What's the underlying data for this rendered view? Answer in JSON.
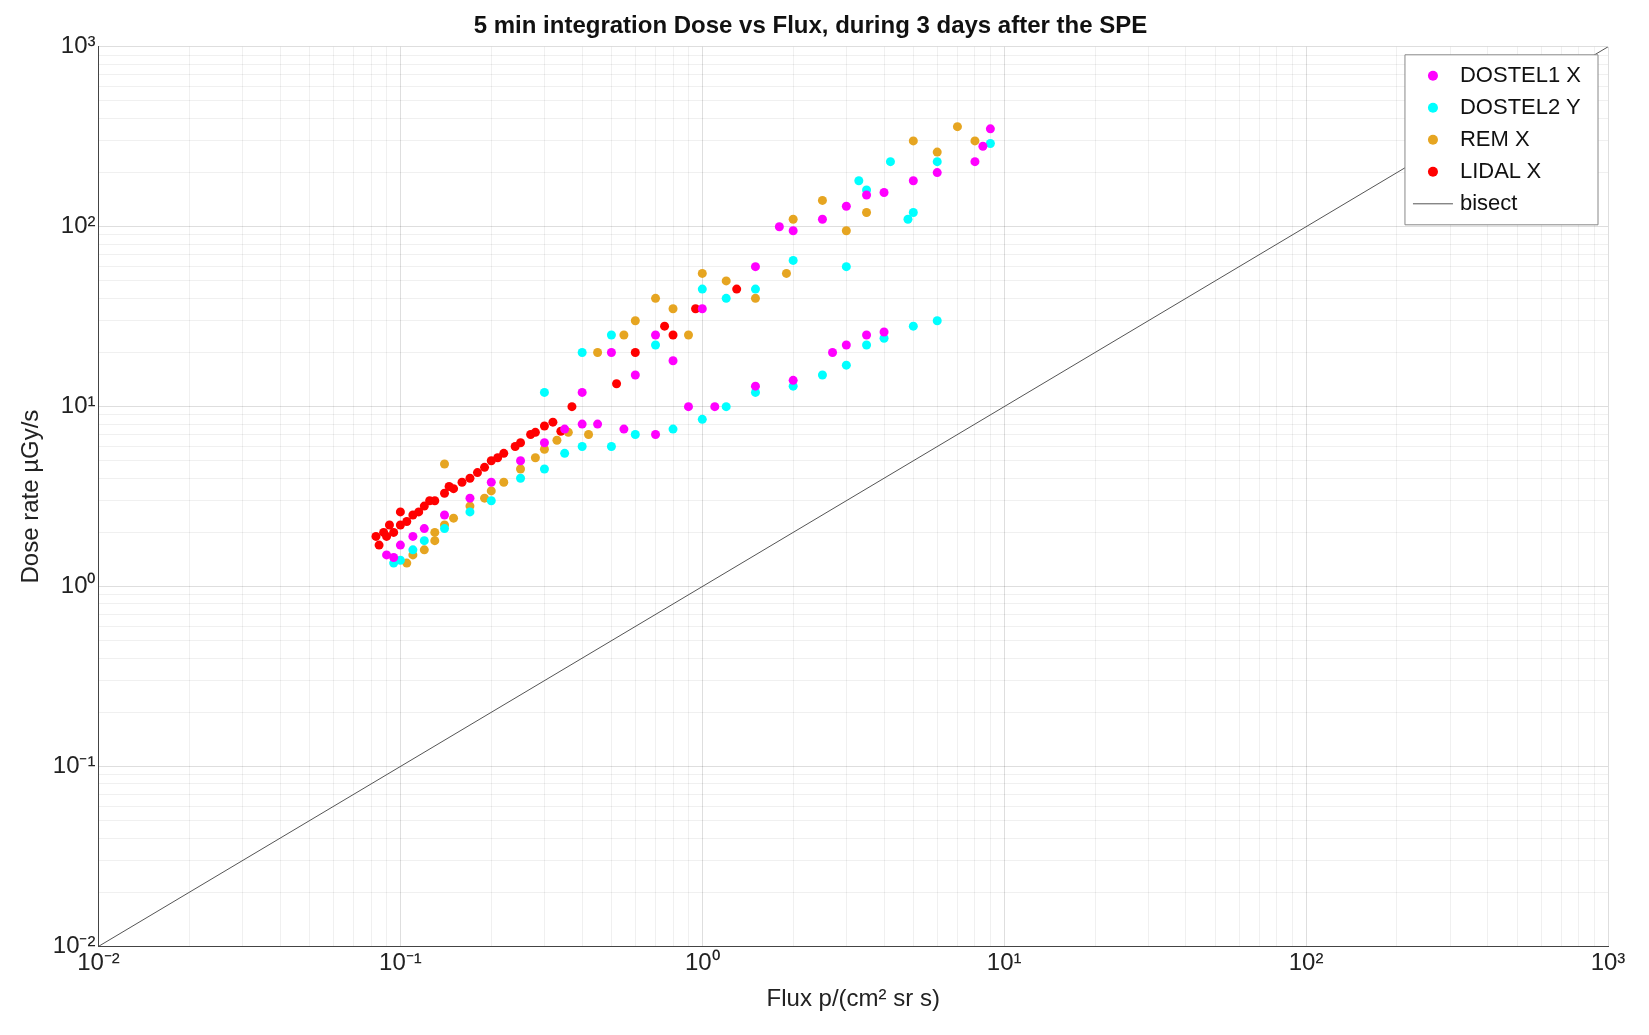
{
  "chart_data": {
    "type": "scatter",
    "title": "5 min integration Dose vs Flux, during 3 days after the SPE",
    "xlabel": "Flux p/(cm² sr s)",
    "ylabel": "Dose rate µGy/s",
    "log": "xy",
    "grid": true,
    "legend": "top right",
    "marker": "circle",
    "xlim": [
      0.01,
      1000
    ],
    "ylim": [
      0.01,
      1000
    ],
    "xticks": [
      {
        "value": 0.01,
        "label": "10⁻²"
      },
      {
        "value": 0.02,
        "label": null
      },
      {
        "value": 0.03,
        "label": null
      },
      {
        "value": 0.04,
        "label": null
      },
      {
        "value": 0.05,
        "label": null
      },
      {
        "value": 0.06,
        "label": null
      },
      {
        "value": 0.07,
        "label": null
      },
      {
        "value": 0.08,
        "label": null
      },
      {
        "value": 0.09,
        "label": null
      },
      {
        "value": 0.1,
        "label": "10⁻¹"
      },
      {
        "value": 0.2,
        "label": null
      },
      {
        "value": 0.3,
        "label": null
      },
      {
        "value": 0.4,
        "label": null
      },
      {
        "value": 0.5,
        "label": null
      },
      {
        "value": 0.6,
        "label": null
      },
      {
        "value": 0.7,
        "label": null
      },
      {
        "value": 0.8,
        "label": null
      },
      {
        "value": 0.9,
        "label": null
      },
      {
        "value": 1,
        "label": "10⁰"
      },
      {
        "value": 2,
        "label": null
      },
      {
        "value": 3,
        "label": null
      },
      {
        "value": 4,
        "label": null
      },
      {
        "value": 5,
        "label": null
      },
      {
        "value": 6,
        "label": null
      },
      {
        "value": 7,
        "label": null
      },
      {
        "value": 8,
        "label": null
      },
      {
        "value": 9,
        "label": null
      },
      {
        "value": 10,
        "label": "10¹"
      },
      {
        "value": 20,
        "label": null
      },
      {
        "value": 30,
        "label": null
      },
      {
        "value": 40,
        "label": null
      },
      {
        "value": 50,
        "label": null
      },
      {
        "value": 60,
        "label": null
      },
      {
        "value": 70,
        "label": null
      },
      {
        "value": 80,
        "label": null
      },
      {
        "value": 90,
        "label": null
      },
      {
        "value": 100,
        "label": "10²"
      },
      {
        "value": 200,
        "label": null
      },
      {
        "value": 300,
        "label": null
      },
      {
        "value": 400,
        "label": null
      },
      {
        "value": 500,
        "label": null
      },
      {
        "value": 600,
        "label": null
      },
      {
        "value": 700,
        "label": null
      },
      {
        "value": 800,
        "label": null
      },
      {
        "value": 900,
        "label": null
      },
      {
        "value": 1000,
        "label": "10³"
      }
    ],
    "yticks": [
      {
        "value": 0.01,
        "label": "10⁻²"
      },
      {
        "value": 0.02,
        "label": null
      },
      {
        "value": 0.03,
        "label": null
      },
      {
        "value": 0.04,
        "label": null
      },
      {
        "value": 0.05,
        "label": null
      },
      {
        "value": 0.06,
        "label": null
      },
      {
        "value": 0.07,
        "label": null
      },
      {
        "value": 0.08,
        "label": null
      },
      {
        "value": 0.09,
        "label": null
      },
      {
        "value": 0.1,
        "label": "10⁻¹"
      },
      {
        "value": 0.2,
        "label": null
      },
      {
        "value": 0.3,
        "label": null
      },
      {
        "value": 0.4,
        "label": null
      },
      {
        "value": 0.5,
        "label": null
      },
      {
        "value": 0.6,
        "label": null
      },
      {
        "value": 0.7,
        "label": null
      },
      {
        "value": 0.8,
        "label": null
      },
      {
        "value": 0.9,
        "label": null
      },
      {
        "value": 1,
        "label": "10⁰"
      },
      {
        "value": 2,
        "label": null
      },
      {
        "value": 3,
        "label": null
      },
      {
        "value": 4,
        "label": null
      },
      {
        "value": 5,
        "label": null
      },
      {
        "value": 6,
        "label": null
      },
      {
        "value": 7,
        "label": null
      },
      {
        "value": 8,
        "label": null
      },
      {
        "value": 9,
        "label": null
      },
      {
        "value": 10,
        "label": "10¹"
      },
      {
        "value": 20,
        "label": null
      },
      {
        "value": 30,
        "label": null
      },
      {
        "value": 40,
        "label": null
      },
      {
        "value": 50,
        "label": null
      },
      {
        "value": 60,
        "label": null
      },
      {
        "value": 70,
        "label": null
      },
      {
        "value": 80,
        "label": null
      },
      {
        "value": 90,
        "label": null
      },
      {
        "value": 100,
        "label": "10²"
      },
      {
        "value": 200,
        "label": null
      },
      {
        "value": 300,
        "label": null
      },
      {
        "value": 400,
        "label": null
      },
      {
        "value": 500,
        "label": null
      },
      {
        "value": 600,
        "label": null
      },
      {
        "value": 700,
        "label": null
      },
      {
        "value": 800,
        "label": null
      },
      {
        "value": 900,
        "label": null
      },
      {
        "value": 1000,
        "label": "10³"
      }
    ],
    "series": [
      {
        "name": "DOSTEL1 X",
        "color": "#ff00ff",
        "x": [
          0.09,
          0.095,
          0.1,
          0.11,
          0.12,
          0.14,
          0.17,
          0.2,
          0.25,
          0.3,
          0.35,
          0.4,
          0.45,
          0.55,
          0.7,
          0.9,
          1.1,
          1.5,
          2,
          2.7,
          3,
          3.5,
          4,
          0.4,
          0.5,
          0.6,
          0.7,
          0.8,
          1,
          1.5,
          1.8,
          2,
          2.5,
          3,
          3.5,
          4,
          5,
          6,
          8,
          8.5,
          9
        ],
        "values": [
          1.5,
          1.45,
          1.7,
          1.9,
          2.1,
          2.5,
          3.1,
          3.8,
          5,
          6.3,
          7.5,
          8,
          8,
          7.5,
          7,
          10,
          10,
          13,
          14,
          20,
          22,
          25,
          26,
          12,
          20,
          15,
          25,
          18,
          35,
          60,
          100,
          95,
          110,
          130,
          150,
          155,
          180,
          200,
          230,
          280,
          350
        ]
      },
      {
        "name": "DOSTEL2 Y",
        "color": "#00ffff",
        "x": [
          0.095,
          0.1,
          0.11,
          0.12,
          0.14,
          0.17,
          0.2,
          0.25,
          0.3,
          0.35,
          0.4,
          0.5,
          0.6,
          0.8,
          1,
          1.2,
          1.5,
          2,
          2.5,
          3,
          3.5,
          4,
          5,
          6,
          0.3,
          0.4,
          0.5,
          0.7,
          1,
          1.2,
          1.5,
          2,
          3,
          3.3,
          3.5,
          4.2,
          4.8,
          5,
          6,
          9
        ],
        "values": [
          1.35,
          1.4,
          1.6,
          1.8,
          2.1,
          2.6,
          3,
          4,
          4.5,
          5.5,
          6,
          6,
          7,
          7.5,
          8.5,
          10,
          12,
          13,
          15,
          17,
          22,
          24,
          28,
          30,
          12,
          20,
          25,
          22,
          45,
          40,
          45,
          65,
          60,
          180,
          160,
          230,
          110,
          120,
          230,
          290
        ]
      },
      {
        "name": "REM X",
        "color": "#e6a521",
        "x": [
          0.105,
          0.11,
          0.12,
          0.13,
          0.13,
          0.14,
          0.15,
          0.17,
          0.19,
          0.2,
          0.22,
          0.25,
          0.28,
          0.3,
          0.33,
          0.36,
          0.42,
          0.14,
          0.45,
          0.55,
          0.6,
          0.7,
          0.8,
          0.9,
          1,
          1.2,
          1.5,
          1.9,
          2,
          2.5,
          3,
          3.5,
          5,
          6,
          7,
          8
        ],
        "values": [
          1.35,
          1.5,
          1.6,
          1.8,
          2,
          2.2,
          2.4,
          2.8,
          3.1,
          3.4,
          3.8,
          4.5,
          5.2,
          5.8,
          6.5,
          7.2,
          7,
          4.8,
          20,
          25,
          30,
          40,
          35,
          25,
          55,
          50,
          40,
          55,
          110,
          140,
          95,
          120,
          300,
          260,
          360,
          300
        ]
      },
      {
        "name": "LIDAL X",
        "color": "#ff0000",
        "x": [
          0.083,
          0.085,
          0.088,
          0.09,
          0.092,
          0.095,
          0.1,
          0.1,
          0.105,
          0.11,
          0.115,
          0.12,
          0.125,
          0.13,
          0.14,
          0.145,
          0.15,
          0.16,
          0.17,
          0.18,
          0.19,
          0.2,
          0.21,
          0.22,
          0.24,
          0.25,
          0.27,
          0.28,
          0.3,
          0.32,
          0.34,
          0.37,
          0.52,
          0.6,
          0.75,
          0.8,
          0.95,
          1.3
        ],
        "values": [
          1.9,
          1.7,
          2,
          1.9,
          2.2,
          2,
          2.2,
          2.6,
          2.3,
          2.5,
          2.6,
          2.8,
          3,
          3,
          3.3,
          3.6,
          3.5,
          3.8,
          4,
          4.3,
          4.6,
          5,
          5.2,
          5.5,
          6,
          6.3,
          7,
          7.2,
          7.8,
          8.2,
          7.3,
          10,
          13.4,
          20,
          28,
          25,
          35,
          45
        ]
      },
      {
        "name": "bisect",
        "type": "line",
        "color": "#555555",
        "marker": "none",
        "x": [
          0.01,
          1000
        ],
        "values": [
          0.01,
          1000
        ]
      }
    ]
  }
}
